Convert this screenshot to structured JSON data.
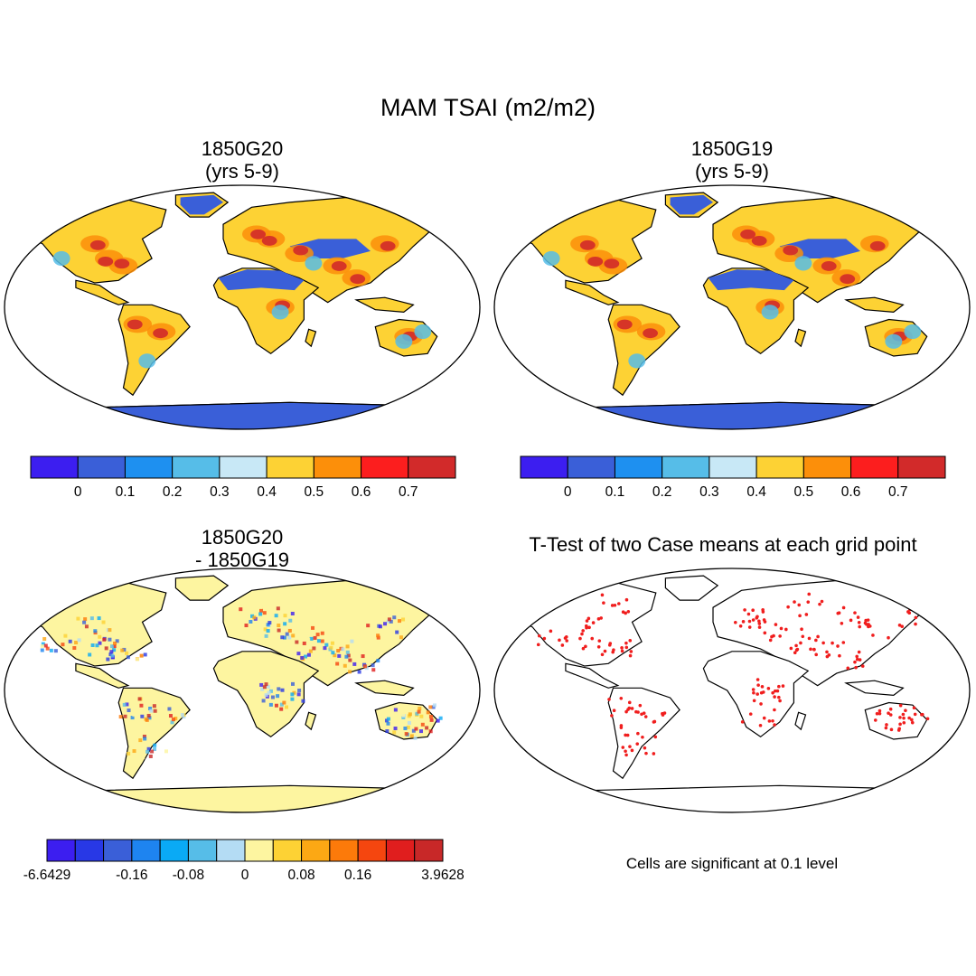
{
  "title": "MAM TSAI (m2/m2)",
  "panels": [
    {
      "title1": "1850G20",
      "title2": "(yrs 5-9)"
    },
    {
      "title1": "1850G19",
      "title2": "(yrs 5-9)"
    },
    {
      "title1": "1850G20",
      "title2": "- 1850G19"
    },
    {
      "title1": "T-Test of two Case means at each grid point",
      "title2": ""
    }
  ],
  "note": "Cells are significant at 0.1 level",
  "colorbars": {
    "abs": {
      "colors": [
        "#3c1ef0",
        "#3a5fd8",
        "#1e90f0",
        "#56bde8",
        "#c8e8f6",
        "#fdd234",
        "#fc8f0a",
        "#fc1e1e",
        "#d22a2a"
      ],
      "labels": [
        "0",
        "0.1",
        "0.2",
        "0.3",
        "0.4",
        "0.5",
        "0.6",
        "0.7"
      ]
    },
    "diff": {
      "colors": [
        "#3c1ef0",
        "#2838e6",
        "#3a5fd8",
        "#1e84f0",
        "#0aaaf5",
        "#56bde8",
        "#b4dcf4",
        "#fdf5a0",
        "#fdd234",
        "#fca814",
        "#fc7a0a",
        "#f5460f",
        "#e01e1e",
        "#c82828"
      ],
      "labels": [
        "-6.6429",
        "-0.16",
        "-0.08",
        "0",
        "0.08",
        "0.16",
        "3.9628"
      ]
    }
  },
  "map_colors": {
    "desert": "#3a5fd8",
    "land_abs": "#fdd234",
    "land_diff": "#fdf5a0",
    "hot": "#d22a2a",
    "warm": "#fc8f0a",
    "cool": "#56bde8",
    "significant": "#f01e1e"
  }
}
